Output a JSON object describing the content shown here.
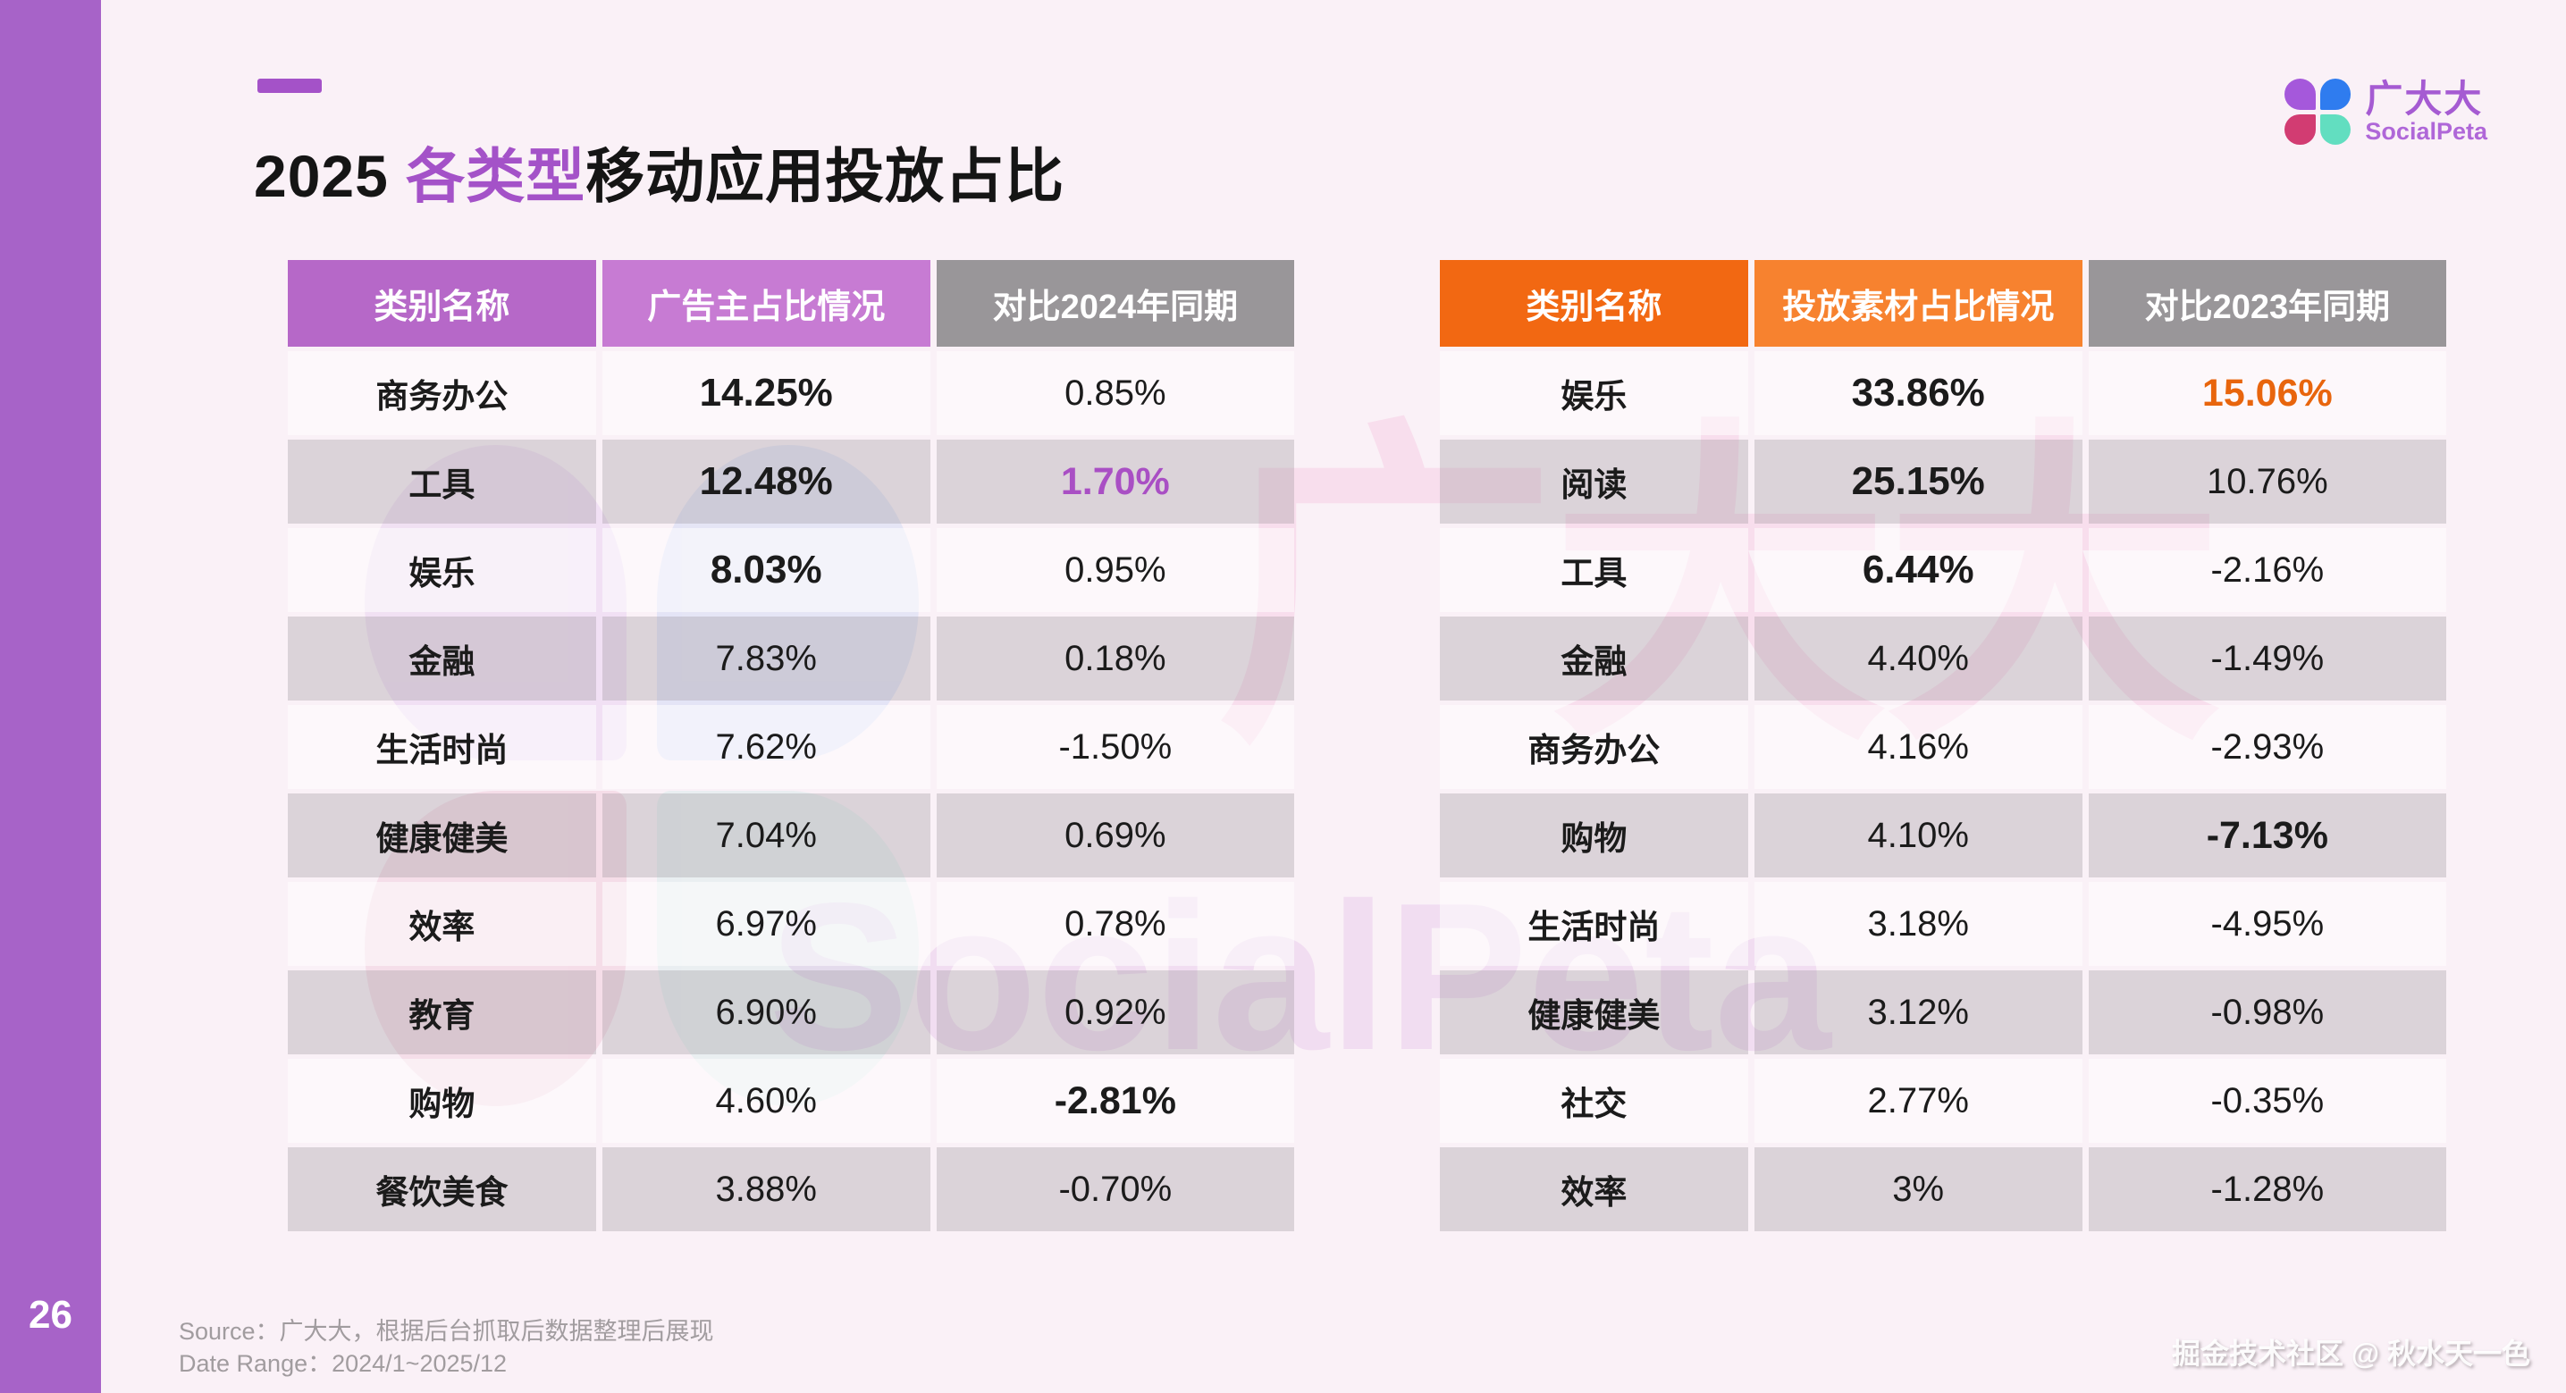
{
  "colors": {
    "sidebar_purple": "#A763C8",
    "title_highlight_purple": "#A452C8",
    "left_header_col1": "#B668C8",
    "left_header_col2": "#C77BD3",
    "right_header_col1": "#F26812",
    "right_header_col2": "#F7822F",
    "header_gray": "#999699",
    "left_accent": "#A94FC4",
    "right_accent": "#E8650D",
    "logo_petal_purple": "#A558DB",
    "logo_petal_blue": "#2F7CEF",
    "logo_petal_pink": "#D23C72",
    "logo_petal_teal": "#62DEC0"
  },
  "page": {
    "page_number": "26",
    "title": {
      "prefix": "2025 ",
      "highlight": "各类型",
      "suffix": "移动应用投放占比"
    },
    "logo": {
      "name": "广大大",
      "subname": "SocialPeta"
    },
    "watermark": {
      "text_cn": "广大大",
      "text_en": "SocialPeta"
    },
    "footer": {
      "source": "Source：广大大，根据后台抓取后数据整理后展现",
      "date_range": "Date Range：2024/1~2025/12"
    },
    "credit": "掘金技术社区 @ 秋水天一色"
  },
  "left_table": {
    "headers": [
      "类别名称",
      "广告主占比情况",
      "对比2024年同期"
    ],
    "rows": [
      {
        "category": "商务办公",
        "value": "14.25%",
        "change": "0.85%",
        "value_bold": true,
        "change_style": "normal"
      },
      {
        "category": "工具",
        "value": "12.48%",
        "change": "1.70%",
        "value_bold": true,
        "change_style": "accent"
      },
      {
        "category": "娱乐",
        "value": "8.03%",
        "change": "0.95%",
        "value_bold": true,
        "change_style": "normal"
      },
      {
        "category": "金融",
        "value": "7.83%",
        "change": "0.18%",
        "value_bold": false,
        "change_style": "normal"
      },
      {
        "category": "生活时尚",
        "value": "7.62%",
        "change": "-1.50%",
        "value_bold": false,
        "change_style": "normal"
      },
      {
        "category": "健康健美",
        "value": "7.04%",
        "change": "0.69%",
        "value_bold": false,
        "change_style": "normal"
      },
      {
        "category": "效率",
        "value": "6.97%",
        "change": "0.78%",
        "value_bold": false,
        "change_style": "normal"
      },
      {
        "category": "教育",
        "value": "6.90%",
        "change": "0.92%",
        "value_bold": false,
        "change_style": "normal"
      },
      {
        "category": "购物",
        "value": "4.60%",
        "change": "-2.81%",
        "value_bold": false,
        "change_style": "bold"
      },
      {
        "category": "餐饮美食",
        "value": "3.88%",
        "change": "-0.70%",
        "value_bold": false,
        "change_style": "normal"
      }
    ]
  },
  "right_table": {
    "headers": [
      "类别名称",
      "投放素材占比情况",
      "对比2023年同期"
    ],
    "rows": [
      {
        "category": "娱乐",
        "value": "33.86%",
        "change": "15.06%",
        "value_bold": true,
        "change_style": "accent"
      },
      {
        "category": "阅读",
        "value": "25.15%",
        "change": "10.76%",
        "value_bold": true,
        "change_style": "normal"
      },
      {
        "category": "工具",
        "value": "6.44%",
        "change": "-2.16%",
        "value_bold": true,
        "change_style": "normal"
      },
      {
        "category": "金融",
        "value": "4.40%",
        "change": "-1.49%",
        "value_bold": false,
        "change_style": "normal"
      },
      {
        "category": "商务办公",
        "value": "4.16%",
        "change": "-2.93%",
        "value_bold": false,
        "change_style": "normal"
      },
      {
        "category": "购物",
        "value": "4.10%",
        "change": "-7.13%",
        "value_bold": false,
        "change_style": "bold"
      },
      {
        "category": "生活时尚",
        "value": "3.18%",
        "change": "-4.95%",
        "value_bold": false,
        "change_style": "normal"
      },
      {
        "category": "健康健美",
        "value": "3.12%",
        "change": "-0.98%",
        "value_bold": false,
        "change_style": "normal"
      },
      {
        "category": "社交",
        "value": "2.77%",
        "change": "-0.35%",
        "value_bold": false,
        "change_style": "normal"
      },
      {
        "category": "效率",
        "value": "3%",
        "change": "-1.28%",
        "value_bold": false,
        "change_style": "normal"
      }
    ]
  }
}
